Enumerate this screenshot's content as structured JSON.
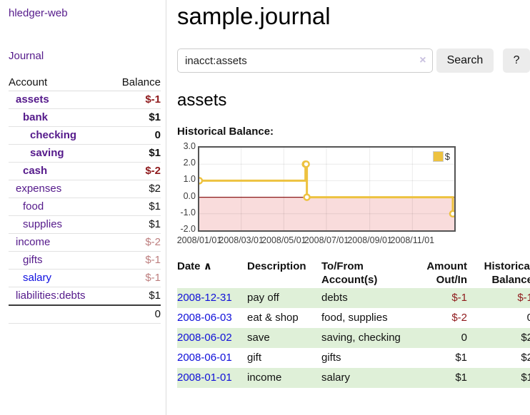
{
  "app": {
    "brand": "hledger-web"
  },
  "sidebar": {
    "nav_journal": "Journal",
    "accounts_table": {
      "headers": {
        "account": "Account",
        "balance": "Balance"
      },
      "rows": [
        {
          "name": "assets",
          "depth": 1,
          "bold": true,
          "link_color": "purple",
          "balance": "$-1",
          "balance_style": "neg-strong"
        },
        {
          "name": "bank",
          "depth": 2,
          "bold": true,
          "link_color": "purple",
          "balance": "$1",
          "balance_style": "pos"
        },
        {
          "name": "checking",
          "depth": 3,
          "bold": true,
          "link_color": "purple",
          "balance": "0",
          "balance_style": "pos"
        },
        {
          "name": "saving",
          "depth": 3,
          "bold": true,
          "link_color": "purple",
          "balance": "$1",
          "balance_style": "pos"
        },
        {
          "name": "cash",
          "depth": 2,
          "bold": true,
          "link_color": "purple",
          "balance": "$-2",
          "balance_style": "neg-strong"
        },
        {
          "name": "expenses",
          "depth": 1,
          "bold": false,
          "link_color": "purple",
          "balance": "$2",
          "balance_style": "pos"
        },
        {
          "name": "food",
          "depth": 2,
          "bold": false,
          "link_color": "purple",
          "balance": "$1",
          "balance_style": "pos"
        },
        {
          "name": "supplies",
          "depth": 2,
          "bold": false,
          "link_color": "purple",
          "balance": "$1",
          "balance_style": "pos"
        },
        {
          "name": "income",
          "depth": 1,
          "bold": false,
          "link_color": "purple",
          "balance": "$-2",
          "balance_style": "neg-soft"
        },
        {
          "name": "gifts",
          "depth": 2,
          "bold": false,
          "link_color": "purple",
          "balance": "$-1",
          "balance_style": "neg-soft"
        },
        {
          "name": "salary",
          "depth": 2,
          "bold": false,
          "link_color": "blue",
          "balance": "$-1",
          "balance_style": "neg-soft"
        },
        {
          "name": "liabilities:debts",
          "depth": 1,
          "bold": false,
          "link_color": "purple",
          "balance": "$1",
          "balance_style": "pos"
        }
      ],
      "total": "0"
    }
  },
  "main": {
    "page_title": "sample.journal",
    "search": {
      "value": "inacct:assets",
      "clear_icon": "×",
      "button_label": "Search",
      "help_label": "?"
    },
    "account_heading": "assets",
    "chart_label": "Historical Balance:"
  },
  "chart_data": {
    "type": "line",
    "step": true,
    "title": "Historical Balance",
    "legend": "$",
    "legend_position": "top-right",
    "x_range": [
      "2008-01-01",
      "2008-12-31"
    ],
    "ylim": [
      -2,
      3
    ],
    "y_ticks": [
      "3.0",
      "2.0",
      "1.0",
      "0.0",
      "-1.0",
      "-2.0"
    ],
    "y_tick_values": [
      3,
      2,
      1,
      0,
      -1,
      -2
    ],
    "x_tick_labels": [
      "2008/01/01",
      "2008/03/01",
      "2008/05/01",
      "2008/07/01",
      "2008/09/01",
      "2008/11/01"
    ],
    "series": [
      {
        "name": "$",
        "color": "#edc240",
        "points": [
          [
            "2008-01-01",
            1
          ],
          [
            "2008-06-01",
            2
          ],
          [
            "2008-06-02",
            2
          ],
          [
            "2008-06-03",
            0
          ],
          [
            "2008-12-31",
            -1
          ]
        ]
      }
    ],
    "negative_fill": "#f9dcdc",
    "zero_line_color": "#8b1a1a",
    "grid_color": "rgba(0,0,0,0.08)",
    "border_color": "#545454"
  },
  "transactions": {
    "headers": {
      "date": "Date",
      "sort_indicator": "∧",
      "description": "Description",
      "account": "To/From Account(s)",
      "amount": "Amount Out/In",
      "balance": "Historical Balance"
    },
    "rows": [
      {
        "date": "2008-12-31",
        "description": "pay off",
        "accounts": "debts",
        "amount": "$-1",
        "amount_neg": true,
        "balance": "$-1",
        "balance_neg": true
      },
      {
        "date": "2008-06-03",
        "description": "eat & shop",
        "accounts": "food, supplies",
        "amount": "$-2",
        "amount_neg": true,
        "balance": "0",
        "balance_neg": false
      },
      {
        "date": "2008-06-02",
        "description": "save",
        "accounts": "saving, checking",
        "amount": "0",
        "amount_neg": false,
        "balance": "$2",
        "balance_neg": false
      },
      {
        "date": "2008-06-01",
        "description": "gift",
        "accounts": "gifts",
        "amount": "$1",
        "amount_neg": false,
        "balance": "$2",
        "balance_neg": false
      },
      {
        "date": "2008-01-01",
        "description": "income",
        "accounts": "salary",
        "amount": "$1",
        "amount_neg": false,
        "balance": "$1",
        "balance_neg": false
      }
    ]
  }
}
